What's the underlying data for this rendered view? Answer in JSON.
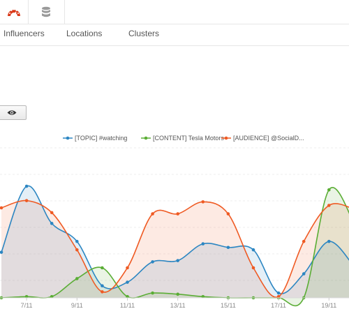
{
  "icons": {
    "dashboard": "speedometer-icon",
    "database": "database-icon",
    "eye": "eye-icon"
  },
  "tabs": [
    {
      "label": "Influencers"
    },
    {
      "label": "Locations"
    },
    {
      "label": "Clusters"
    }
  ],
  "colors": {
    "topic": "#2c86c2",
    "content": "#5aad35",
    "audience": "#ef5a23",
    "dashboard_icon": "#d93a1a",
    "database_icon": "#9a9a9a"
  },
  "chart_data": {
    "type": "area",
    "x_labels": [
      "7/11",
      "9/11",
      "11/11",
      "13/11",
      "15/11",
      "17/11",
      "19/11"
    ],
    "series": [
      {
        "name": "[TOPIC] #watching",
        "color": "#2c86c2",
        "values": [
          38,
          93,
          62,
          47,
          10,
          13,
          30,
          31,
          45,
          42,
          40,
          4,
          20,
          47,
          26
        ]
      },
      {
        "name": "[CONTENT] Tesla Motors",
        "color": "#5aad35",
        "values": [
          0,
          1,
          1,
          16,
          25,
          1,
          4,
          3,
          1,
          0,
          0,
          0,
          0,
          90,
          62
        ]
      },
      {
        "name": "[AUDIENCE] @SocialD...",
        "color": "#ef5a23",
        "values": [
          75,
          81,
          71,
          40,
          5,
          25,
          70,
          70,
          80,
          70,
          25,
          1,
          47,
          77,
          74
        ]
      }
    ]
  }
}
